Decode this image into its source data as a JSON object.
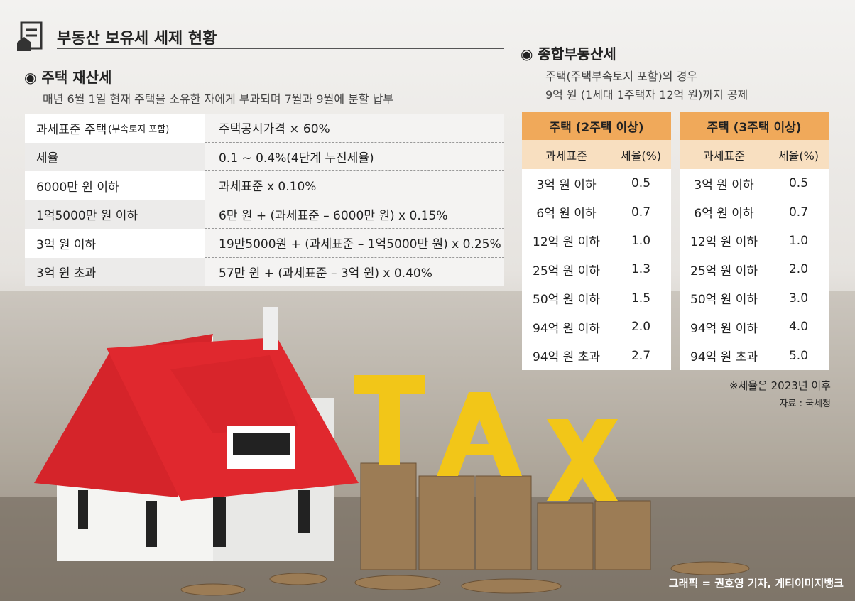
{
  "header": {
    "title": "부동산 보유세 세제 현황"
  },
  "property_tax": {
    "title": "주택 재산세",
    "description": "매년 6월 1일 현재 주택을 소유한 자에게 부과되며 7월과 9월에 분할 납부",
    "rows": [
      {
        "label": "과세표준 주택",
        "label_note": "(부속토지 포함)",
        "value": "주택공시가격 × 60%"
      },
      {
        "label": "세율",
        "value": "0.1 ~ 0.4%(4단계 누진세율)"
      },
      {
        "label": "6000만 원 이하",
        "value": "과세표준 x 0.10%"
      },
      {
        "label": "1억5000만 원 이하",
        "value": "6만 원 + (과세표준 – 6000만 원) x 0.15%"
      },
      {
        "label": "3억 원 이하",
        "value": "19만5000원 + (과세표준 – 1억5000만 원) x 0.25%"
      },
      {
        "label": "3억 원 초과",
        "value": "57만 원 + (과세표준 – 3억 원) x 0.40%"
      }
    ]
  },
  "comprehensive_tax": {
    "title": "종합부동산세",
    "description": [
      "주택(주택부속토지 포함)의 경우",
      "9억 원 (1세대 1주택자 12억 원)까지 공제"
    ],
    "tables": [
      {
        "title": "주택 (2주택 이상)",
        "columns": [
          "과세표준",
          "세율(%)"
        ],
        "rows": [
          [
            "3억 원 이하",
            "0.5"
          ],
          [
            "6억 원 이하",
            "0.7"
          ],
          [
            "12억 원 이하",
            "1.0"
          ],
          [
            "25억 원 이하",
            "1.3"
          ],
          [
            "50억 원 이하",
            "1.5"
          ],
          [
            "94억 원 이하",
            "2.0"
          ],
          [
            "94억 원 초과",
            "2.7"
          ]
        ]
      },
      {
        "title": "주택 (3주택 이상)",
        "columns": [
          "과세표준",
          "세율(%)"
        ],
        "rows": [
          [
            "3억 원 이하",
            "0.5"
          ],
          [
            "6억 원 이하",
            "0.7"
          ],
          [
            "12억 원 이하",
            "1.0"
          ],
          [
            "25억 원 이하",
            "2.0"
          ],
          [
            "50억 원 이하",
            "3.0"
          ],
          [
            "94억 원 이하",
            "4.0"
          ],
          [
            "94억 원 초과",
            "5.0"
          ]
        ]
      }
    ]
  },
  "notes": [
    "※세율은 2023년 이후",
    "자료 : 국세청"
  ],
  "credit": "그래픽 = 권호영 기자, 게티이미지뱅크"
}
